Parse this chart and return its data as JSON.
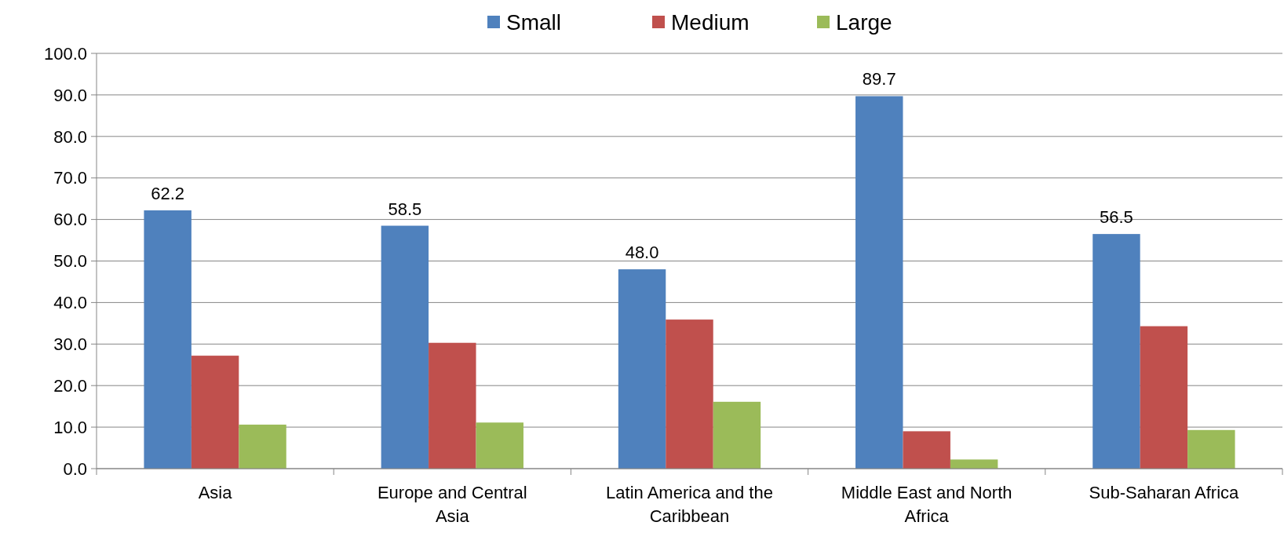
{
  "chart_data": {
    "type": "bar",
    "categories": [
      "Asia",
      "Europe and Central Asia",
      "Latin America and the Caribbean",
      "Middle East and North Africa",
      "Sub-Saharan Africa"
    ],
    "series": [
      {
        "name": "Small",
        "color": "#4f81bd",
        "values": [
          62.2,
          58.5,
          48.0,
          89.7,
          56.5
        ],
        "value_labels": [
          "62.2",
          "58.5",
          "48.0",
          "89.7",
          "56.5"
        ]
      },
      {
        "name": "Medium",
        "color": "#c0504d",
        "values": [
          27.2,
          30.3,
          35.9,
          9.0,
          34.3
        ]
      },
      {
        "name": "Large",
        "color": "#9bbb59",
        "values": [
          10.6,
          11.1,
          16.1,
          2.2,
          9.3
        ]
      }
    ],
    "ylim": [
      0,
      100
    ],
    "yticks": [
      {
        "value": 0,
        "label": "0.0"
      },
      {
        "value": 10,
        "label": "10.0"
      },
      {
        "value": 20,
        "label": "20.0"
      },
      {
        "value": 30,
        "label": "30.0"
      },
      {
        "value": 40,
        "label": "40.0"
      },
      {
        "value": 50,
        "label": "50.0"
      },
      {
        "value": 60,
        "label": "60.0"
      },
      {
        "value": 70,
        "label": "70.0"
      },
      {
        "value": 80,
        "label": "80.0"
      },
      {
        "value": 90,
        "label": "90.0"
      },
      {
        "value": 100,
        "label": "100.0"
      }
    ],
    "grid": "y",
    "legend": "top"
  }
}
